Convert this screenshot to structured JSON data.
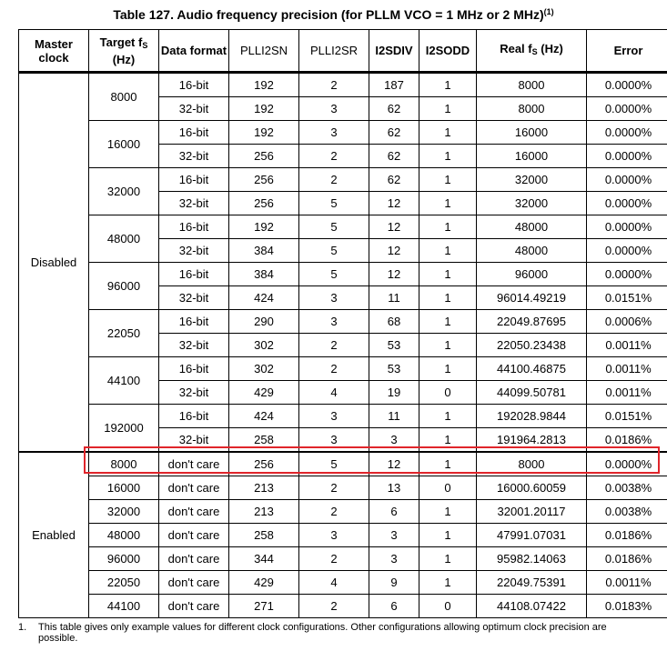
{
  "title": "Table 127. Audio frequency precision (for PLLM VCO = 1 MHz or 2 MHz)",
  "title_footnote_ref": "(1)",
  "headers": {
    "master_clock": "Master clock",
    "target_fs": "Target f",
    "target_fs_sub": "S",
    "target_fs_unit": "(Hz)",
    "data_format": "Data format",
    "plli2sn": "PLLI2SN",
    "plli2sr": "PLLI2SR",
    "i2sdiv": "I2SDIV",
    "i2sodd": "I2SODD",
    "real_fs": "Real f",
    "real_fs_sub": "S",
    "real_fs_unit": "(Hz)",
    "error": "Error"
  },
  "disabled_label": "Disabled",
  "enabled_label": "Enabled",
  "disabled_groups": [
    {
      "target": "8000",
      "rows": [
        {
          "format": "16-bit",
          "plli2sn": "192",
          "plli2sr": "2",
          "i2sdiv": "187",
          "i2sodd": "1",
          "real": "8000",
          "error": "0.0000%"
        },
        {
          "format": "32-bit",
          "plli2sn": "192",
          "plli2sr": "3",
          "i2sdiv": "62",
          "i2sodd": "1",
          "real": "8000",
          "error": "0.0000%"
        }
      ]
    },
    {
      "target": "16000",
      "rows": [
        {
          "format": "16-bit",
          "plli2sn": "192",
          "plli2sr": "3",
          "i2sdiv": "62",
          "i2sodd": "1",
          "real": "16000",
          "error": "0.0000%"
        },
        {
          "format": "32-bit",
          "plli2sn": "256",
          "plli2sr": "2",
          "i2sdiv": "62",
          "i2sodd": "1",
          "real": "16000",
          "error": "0.0000%"
        }
      ]
    },
    {
      "target": "32000",
      "rows": [
        {
          "format": "16-bit",
          "plli2sn": "256",
          "plli2sr": "2",
          "i2sdiv": "62",
          "i2sodd": "1",
          "real": "32000",
          "error": "0.0000%"
        },
        {
          "format": "32-bit",
          "plli2sn": "256",
          "plli2sr": "5",
          "i2sdiv": "12",
          "i2sodd": "1",
          "real": "32000",
          "error": "0.0000%"
        }
      ]
    },
    {
      "target": "48000",
      "rows": [
        {
          "format": "16-bit",
          "plli2sn": "192",
          "plli2sr": "5",
          "i2sdiv": "12",
          "i2sodd": "1",
          "real": "48000",
          "error": "0.0000%"
        },
        {
          "format": "32-bit",
          "plli2sn": "384",
          "plli2sr": "5",
          "i2sdiv": "12",
          "i2sodd": "1",
          "real": "48000",
          "error": "0.0000%"
        }
      ]
    },
    {
      "target": "96000",
      "rows": [
        {
          "format": "16-bit",
          "plli2sn": "384",
          "plli2sr": "5",
          "i2sdiv": "12",
          "i2sodd": "1",
          "real": "96000",
          "error": "0.0000%"
        },
        {
          "format": "32-bit",
          "plli2sn": "424",
          "plli2sr": "3",
          "i2sdiv": "11",
          "i2sodd": "1",
          "real": "96014.49219",
          "error": "0.0151%"
        }
      ]
    },
    {
      "target": "22050",
      "rows": [
        {
          "format": "16-bit",
          "plli2sn": "290",
          "plli2sr": "3",
          "i2sdiv": "68",
          "i2sodd": "1",
          "real": "22049.87695",
          "error": "0.0006%"
        },
        {
          "format": "32-bit",
          "plli2sn": "302",
          "plli2sr": "2",
          "i2sdiv": "53",
          "i2sodd": "1",
          "real": "22050.23438",
          "error": "0.0011%"
        }
      ]
    },
    {
      "target": "44100",
      "rows": [
        {
          "format": "16-bit",
          "plli2sn": "302",
          "plli2sr": "2",
          "i2sdiv": "53",
          "i2sodd": "1",
          "real": "44100.46875",
          "error": "0.0011%"
        },
        {
          "format": "32-bit",
          "plli2sn": "429",
          "plli2sr": "4",
          "i2sdiv": "19",
          "i2sodd": "0",
          "real": "44099.50781",
          "error": "0.0011%"
        }
      ]
    },
    {
      "target": "192000",
      "rows": [
        {
          "format": "16-bit",
          "plli2sn": "424",
          "plli2sr": "3",
          "i2sdiv": "11",
          "i2sodd": "1",
          "real": "192028.9844",
          "error": "0.0151%"
        },
        {
          "format": "32-bit",
          "plli2sn": "258",
          "plli2sr": "3",
          "i2sdiv": "3",
          "i2sodd": "1",
          "real": "191964.2813",
          "error": "0.0186%"
        }
      ]
    }
  ],
  "enabled_rows": [
    {
      "target": "8000",
      "format": "don't care",
      "plli2sn": "256",
      "plli2sr": "5",
      "i2sdiv": "12",
      "i2sodd": "1",
      "real": "8000",
      "error": "0.0000%"
    },
    {
      "target": "16000",
      "format": "don't care",
      "plli2sn": "213",
      "plli2sr": "2",
      "i2sdiv": "13",
      "i2sodd": "0",
      "real": "16000.60059",
      "error": "0.0038%"
    },
    {
      "target": "32000",
      "format": "don't care",
      "plli2sn": "213",
      "plli2sr": "2",
      "i2sdiv": "6",
      "i2sodd": "1",
      "real": "32001.20117",
      "error": "0.0038%"
    },
    {
      "target": "48000",
      "format": "don't care",
      "plli2sn": "258",
      "plli2sr": "3",
      "i2sdiv": "3",
      "i2sodd": "1",
      "real": "47991.07031",
      "error": "0.0186%"
    },
    {
      "target": "96000",
      "format": "don't care",
      "plli2sn": "344",
      "plli2sr": "2",
      "i2sdiv": "3",
      "i2sodd": "1",
      "real": "95982.14063",
      "error": "0.0186%"
    },
    {
      "target": "22050",
      "format": "don't care",
      "plli2sn": "429",
      "plli2sr": "4",
      "i2sdiv": "9",
      "i2sodd": "1",
      "real": "22049.75391",
      "error": "0.0011%"
    },
    {
      "target": "44100",
      "format": "don't care",
      "plli2sn": "271",
      "plli2sr": "2",
      "i2sdiv": "6",
      "i2sodd": "0",
      "real": "44108.07422",
      "error": "0.0183%"
    }
  ],
  "footnote": {
    "number": "1.",
    "text": "This table gives only example values for different clock configurations. Other configurations allowing optimum clock precision are possible."
  },
  "highlight_color": "#e0252b"
}
